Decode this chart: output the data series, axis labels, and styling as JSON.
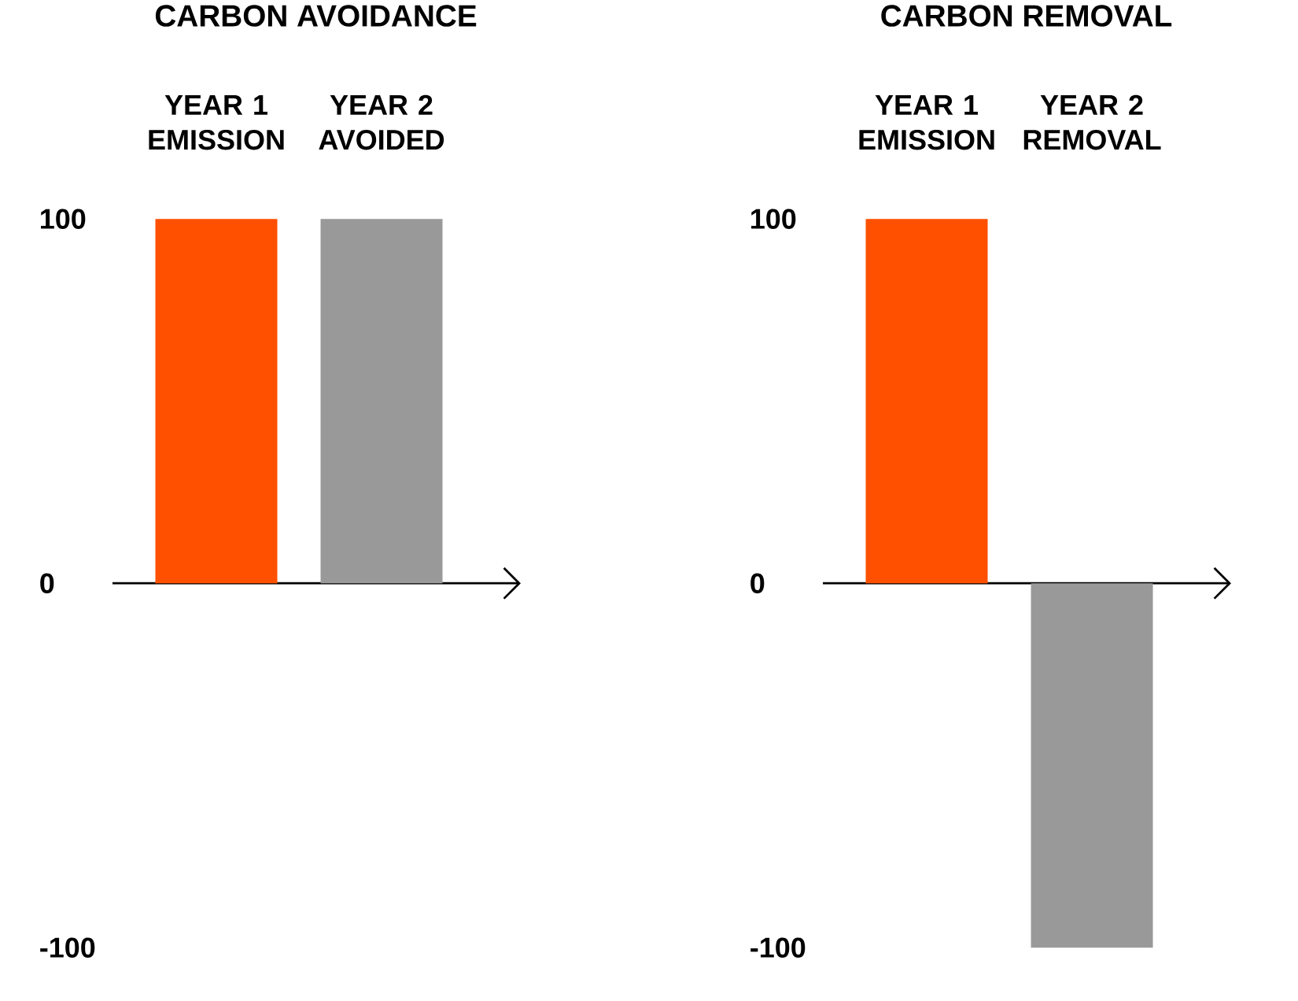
{
  "chart_data": [
    {
      "type": "bar",
      "title": "CARBON AVOIDANCE",
      "categories": [
        "YEAR 1 EMISSION",
        "YEAR 2 AVOIDED"
      ],
      "values": [
        100,
        100
      ],
      "colors": [
        "#ff5000",
        "#999999"
      ],
      "ylim": [
        -100,
        100
      ],
      "yticks": [
        -100,
        0,
        100
      ]
    },
    {
      "type": "bar",
      "title": "CARBON REMOVAL",
      "categories": [
        "YEAR 1 EMISSION",
        "YEAR 2 REMOVAL"
      ],
      "values": [
        100,
        -100
      ],
      "colors": [
        "#ff5000",
        "#999999"
      ],
      "ylim": [
        -100,
        100
      ],
      "yticks": [
        -100,
        0,
        100
      ]
    }
  ]
}
